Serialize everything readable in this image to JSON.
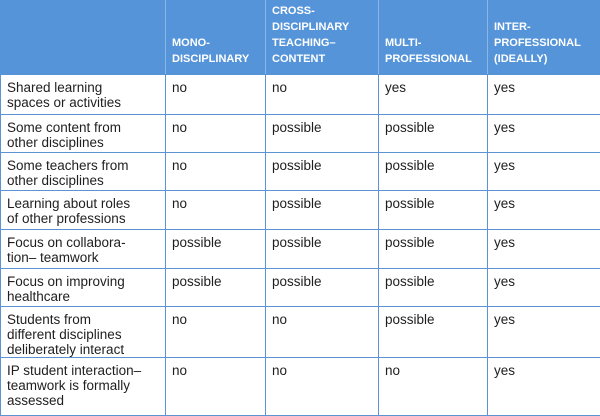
{
  "table": {
    "header": [
      "",
      "MONO-\nDISCIPLINARY",
      "CROSS-\nDISCIPLINARY\nTEACHING–\nCONTENT",
      "MULTI-\nPROFESSIONAL",
      "INTER-\nPROFESSIONAL\n(IDEALLY)"
    ],
    "rows": [
      [
        "Shared learning\nspaces or activities",
        "no",
        "no",
        "yes",
        "yes"
      ],
      [
        "Some content from\nother disciplines",
        "no",
        "possible",
        "possible",
        "yes"
      ],
      [
        "Some teachers from\nother disciplines",
        "no",
        "possible",
        "possible",
        "yes"
      ],
      [
        "Learning about roles\nof other professions",
        "no",
        "possible",
        "possible",
        "yes"
      ],
      [
        "Focus on collabora-\ntion– teamwork",
        "possible",
        "possible",
        "possible",
        "yes"
      ],
      [
        "Focus on improving\nhealthcare",
        "possible",
        "possible",
        "possible",
        "yes"
      ],
      [
        "Students from\ndifferent disciplines\ndeliberately interact",
        "no",
        "no",
        "possible",
        "yes"
      ],
      [
        "IP student interaction–\nteamwork is formally\nassessed",
        "no",
        "no",
        "no",
        "yes"
      ]
    ]
  }
}
